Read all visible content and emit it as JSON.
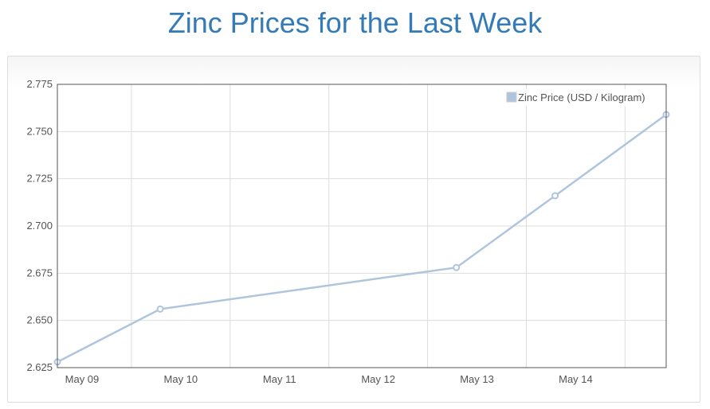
{
  "page": {
    "title": "Zinc Prices for the Last Week"
  },
  "colors": {
    "title": "#337ab7",
    "series": "#afc5de",
    "grid": "#dddddd",
    "axis": "#545454"
  },
  "chart_data": {
    "type": "line",
    "title": "",
    "xlabel": "",
    "ylabel": "",
    "x_tick_labels": [
      "May 09",
      "May 10",
      "May 11",
      "May 12",
      "May 13",
      "May 14"
    ],
    "x_ticks": [
      "2024-05-09",
      "2024-05-10",
      "2024-05-11",
      "2024-05-12",
      "2024-05-13",
      "2024-05-14"
    ],
    "xlim": [
      "2024-05-08T18:00",
      "2024-05-14T22:00"
    ],
    "ylim": [
      2.625,
      2.775
    ],
    "y_ticks": [
      2.625,
      2.65,
      2.675,
      2.7,
      2.725,
      2.75,
      2.775
    ],
    "y_tick_labels": [
      "2.625",
      "2.650",
      "2.675",
      "2.700",
      "2.725",
      "2.750",
      "2.775"
    ],
    "grid": true,
    "legend": {
      "position": "top-right"
    },
    "series": [
      {
        "name": "Zinc Price (USD / Kilogram)",
        "color": "#afc5de",
        "points": [
          {
            "x": "2024-05-08T18:00",
            "y": 2.628
          },
          {
            "x": "2024-05-09T19:00",
            "y": 2.656
          },
          {
            "x": "2024-05-12T19:00",
            "y": 2.678
          },
          {
            "x": "2024-05-13T19:00",
            "y": 2.716
          },
          {
            "x": "2024-05-14T22:00",
            "y": 2.759
          }
        ]
      }
    ]
  }
}
